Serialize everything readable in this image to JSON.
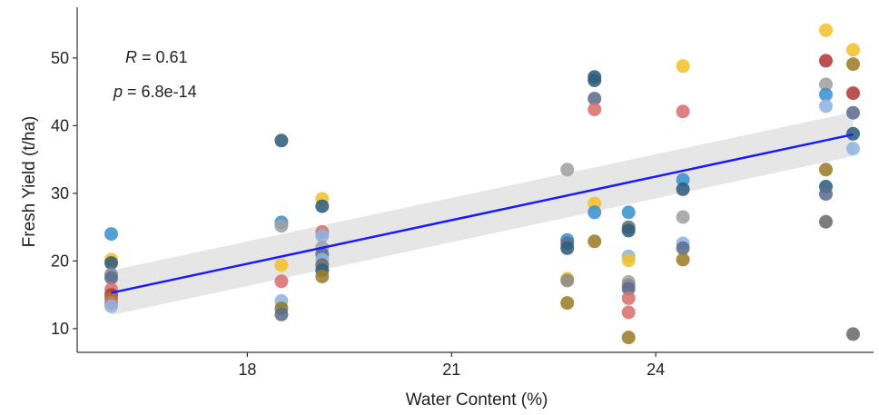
{
  "chart_data": {
    "type": "scatter",
    "xlabel": "Water Content (%)",
    "ylabel": "Fresh Yield (t/ha)",
    "xlim": [
      15.5,
      27.2
    ],
    "ylim": [
      6.5,
      57.5
    ],
    "x_ticks": [
      18,
      21,
      24
    ],
    "y_ticks": [
      10,
      20,
      30,
      40,
      50
    ],
    "grid": false,
    "annotations": [
      {
        "label": "R",
        "value": " = 0.61"
      },
      {
        "label": "p",
        "value": " = 6.8e-14"
      }
    ],
    "trend": {
      "type": "linear",
      "x": [
        16.0,
        26.9
      ],
      "y": [
        15.3,
        38.7
      ],
      "ci_lower": [
        12.0,
        35.5
      ],
      "ci_upper": [
        18.6,
        42.0
      ],
      "color": "#1a1aff",
      "band_color": "#e6e6e6"
    },
    "points": [
      {
        "x": 16.0,
        "y": 24.0,
        "c": "#3b93d0"
      },
      {
        "x": 16.0,
        "y": 20.2,
        "c": "#f2c12e"
      },
      {
        "x": 16.0,
        "y": 19.7,
        "c": "#2f5d7c"
      },
      {
        "x": 16.0,
        "y": 18.0,
        "c": "#8a8a8a"
      },
      {
        "x": 16.0,
        "y": 17.5,
        "c": "#5b6d8f"
      },
      {
        "x": 16.0,
        "y": 15.8,
        "c": "#d97070"
      },
      {
        "x": 16.0,
        "y": 15.0,
        "c": "#b23a3a"
      },
      {
        "x": 16.0,
        "y": 14.4,
        "c": "#9c7e2a"
      },
      {
        "x": 16.0,
        "y": 13.8,
        "c": "#d97070"
      },
      {
        "x": 16.0,
        "y": 13.3,
        "c": "#8fb4e0"
      },
      {
        "x": 18.5,
        "y": 37.8,
        "c": "#2f5d7c"
      },
      {
        "x": 18.5,
        "y": 25.7,
        "c": "#3b93d0"
      },
      {
        "x": 18.5,
        "y": 25.2,
        "c": "#a0a0a0"
      },
      {
        "x": 18.5,
        "y": 19.4,
        "c": "#f2c12e"
      },
      {
        "x": 18.5,
        "y": 17.0,
        "c": "#d97070"
      },
      {
        "x": 18.5,
        "y": 14.1,
        "c": "#8fb4e0"
      },
      {
        "x": 18.5,
        "y": 13.0,
        "c": "#8a7a2a"
      },
      {
        "x": 18.5,
        "y": 12.1,
        "c": "#5b6d8f"
      },
      {
        "x": 19.1,
        "y": 29.2,
        "c": "#f2c12e"
      },
      {
        "x": 19.1,
        "y": 28.1,
        "c": "#2f5d7c"
      },
      {
        "x": 19.1,
        "y": 24.3,
        "c": "#d97070"
      },
      {
        "x": 19.1,
        "y": 23.7,
        "c": "#8fb4e0"
      },
      {
        "x": 19.1,
        "y": 22.0,
        "c": "#a0a0a0"
      },
      {
        "x": 19.1,
        "y": 21.0,
        "c": "#5b6d8f"
      },
      {
        "x": 19.1,
        "y": 20.2,
        "c": "#8fb4e0"
      },
      {
        "x": 19.1,
        "y": 19.4,
        "c": "#6b6b6b"
      },
      {
        "x": 19.1,
        "y": 18.6,
        "c": "#2f5d7c"
      },
      {
        "x": 19.1,
        "y": 17.7,
        "c": "#9c7e2a"
      },
      {
        "x": 22.7,
        "y": 33.5,
        "c": "#a0a0a0"
      },
      {
        "x": 22.7,
        "y": 23.1,
        "c": "#3b93d0"
      },
      {
        "x": 22.7,
        "y": 22.6,
        "c": "#5b6d8f"
      },
      {
        "x": 22.7,
        "y": 21.9,
        "c": "#2f5d7c"
      },
      {
        "x": 22.7,
        "y": 17.4,
        "c": "#f2c12e"
      },
      {
        "x": 22.7,
        "y": 17.1,
        "c": "#8a8a8a"
      },
      {
        "x": 22.7,
        "y": 13.8,
        "c": "#9c7e2a"
      },
      {
        "x": 23.1,
        "y": 47.2,
        "c": "#2f5d7c"
      },
      {
        "x": 23.1,
        "y": 46.7,
        "c": "#2f5d7c"
      },
      {
        "x": 23.1,
        "y": 44.0,
        "c": "#5b6d8f"
      },
      {
        "x": 23.1,
        "y": 42.4,
        "c": "#d97070"
      },
      {
        "x": 23.1,
        "y": 28.5,
        "c": "#f2c12e"
      },
      {
        "x": 23.1,
        "y": 27.2,
        "c": "#3b93d0"
      },
      {
        "x": 23.1,
        "y": 22.9,
        "c": "#9c7e2a"
      },
      {
        "x": 23.6,
        "y": 27.2,
        "c": "#3b93d0"
      },
      {
        "x": 23.6,
        "y": 25.0,
        "c": "#6b6b6b"
      },
      {
        "x": 23.6,
        "y": 24.5,
        "c": "#2f5d7c"
      },
      {
        "x": 23.6,
        "y": 20.7,
        "c": "#8fb4e0"
      },
      {
        "x": 23.6,
        "y": 20.1,
        "c": "#f2c12e"
      },
      {
        "x": 23.6,
        "y": 16.9,
        "c": "#a0a0a0"
      },
      {
        "x": 23.6,
        "y": 16.4,
        "c": "#8a8a8a"
      },
      {
        "x": 23.6,
        "y": 15.9,
        "c": "#5b6d8f"
      },
      {
        "x": 23.6,
        "y": 14.5,
        "c": "#d97070"
      },
      {
        "x": 23.6,
        "y": 12.4,
        "c": "#d97070"
      },
      {
        "x": 23.6,
        "y": 8.7,
        "c": "#9c7e2a"
      },
      {
        "x": 24.4,
        "y": 48.8,
        "c": "#f2c12e"
      },
      {
        "x": 24.4,
        "y": 42.1,
        "c": "#d97070"
      },
      {
        "x": 24.4,
        "y": 32.0,
        "c": "#3b93d0"
      },
      {
        "x": 24.4,
        "y": 30.6,
        "c": "#2f5d7c"
      },
      {
        "x": 24.4,
        "y": 26.5,
        "c": "#a0a0a0"
      },
      {
        "x": 24.4,
        "y": 22.6,
        "c": "#8fb4e0"
      },
      {
        "x": 24.4,
        "y": 21.9,
        "c": "#5b6d8f"
      },
      {
        "x": 24.4,
        "y": 20.2,
        "c": "#9c7e2a"
      },
      {
        "x": 26.5,
        "y": 54.1,
        "c": "#f2c12e"
      },
      {
        "x": 26.5,
        "y": 49.6,
        "c": "#b23a3a"
      },
      {
        "x": 26.5,
        "y": 46.1,
        "c": "#a0a0a0"
      },
      {
        "x": 26.5,
        "y": 44.6,
        "c": "#3b93d0"
      },
      {
        "x": 26.5,
        "y": 42.9,
        "c": "#8fb4e0"
      },
      {
        "x": 26.5,
        "y": 33.5,
        "c": "#9c7e2a"
      },
      {
        "x": 26.5,
        "y": 31.0,
        "c": "#2f5d7c"
      },
      {
        "x": 26.5,
        "y": 29.9,
        "c": "#5b6d8f"
      },
      {
        "x": 26.5,
        "y": 25.8,
        "c": "#6b6b6b"
      },
      {
        "x": 26.9,
        "y": 51.2,
        "c": "#f2c12e"
      },
      {
        "x": 26.9,
        "y": 49.1,
        "c": "#9c7e2a"
      },
      {
        "x": 26.9,
        "y": 44.8,
        "c": "#b23a3a"
      },
      {
        "x": 26.9,
        "y": 41.9,
        "c": "#5b6d8f"
      },
      {
        "x": 26.9,
        "y": 38.8,
        "c": "#2f5d7c"
      },
      {
        "x": 26.9,
        "y": 36.6,
        "c": "#8fb4e0"
      },
      {
        "x": 26.9,
        "y": 9.2,
        "c": "#6b6b6b"
      }
    ]
  }
}
